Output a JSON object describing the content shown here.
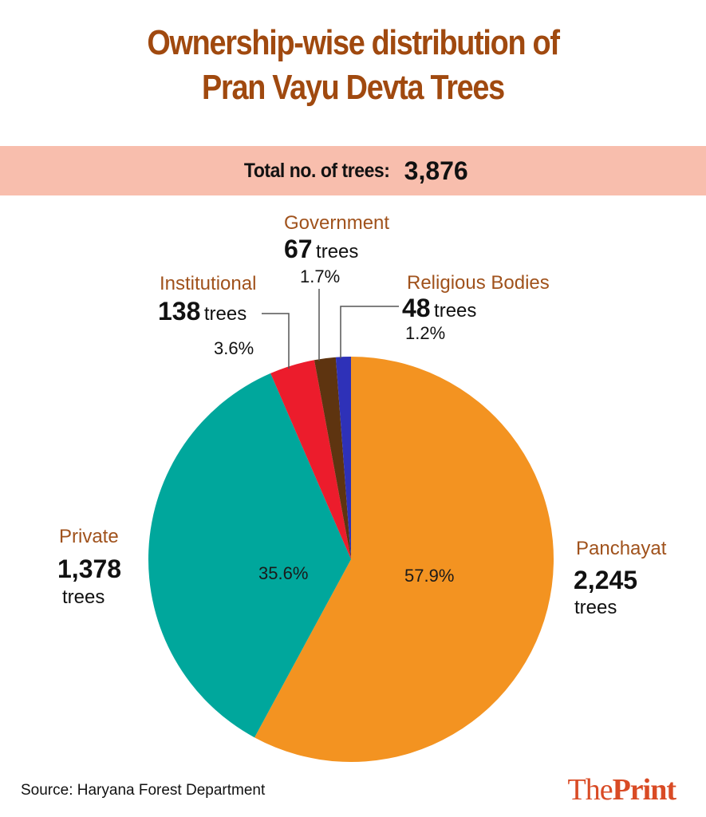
{
  "title": {
    "line1": "Ownership-wise distribution of",
    "line2": "Pran Vayu Devta Trees"
  },
  "total": {
    "label": "Total no. of trees:",
    "value": "3,876"
  },
  "chart_data": {
    "type": "pie",
    "title": "Ownership-wise distribution of Pran Vayu Devta Trees",
    "subtitle": "Total no. of trees: 3,876",
    "start_angle_deg": -90,
    "direction": "clockwise",
    "slices": [
      {
        "name": "Panchayat",
        "count": 2245,
        "count_label": "2,245",
        "percent": 57.9,
        "percent_label": "57.9%",
        "color": "#f39321"
      },
      {
        "name": "Private",
        "count": 1378,
        "count_label": "1,378",
        "percent": 35.6,
        "percent_label": "35.6%",
        "color": "#00a79c"
      },
      {
        "name": "Institutional",
        "count": 138,
        "count_label": "138",
        "percent": 3.6,
        "percent_label": "3.6%",
        "color": "#ec1c2c"
      },
      {
        "name": "Government",
        "count": 67,
        "count_label": "67",
        "percent": 1.7,
        "percent_label": "1.7%",
        "color": "#5e3410"
      },
      {
        "name": "Religious Bodies",
        "count": 48,
        "count_label": "48",
        "percent": 1.2,
        "percent_label": "1.2%",
        "color": "#2e31b8"
      }
    ],
    "unit": "trees"
  },
  "labels": {
    "unit": "trees"
  },
  "source": "Source: Haryana Forest Department",
  "logo": {
    "part1": "The",
    "part2": "Print"
  },
  "colors": {
    "title": "#a0490f",
    "category": "#a0521c",
    "band": "#f8bead",
    "logo": "#d94b25"
  }
}
